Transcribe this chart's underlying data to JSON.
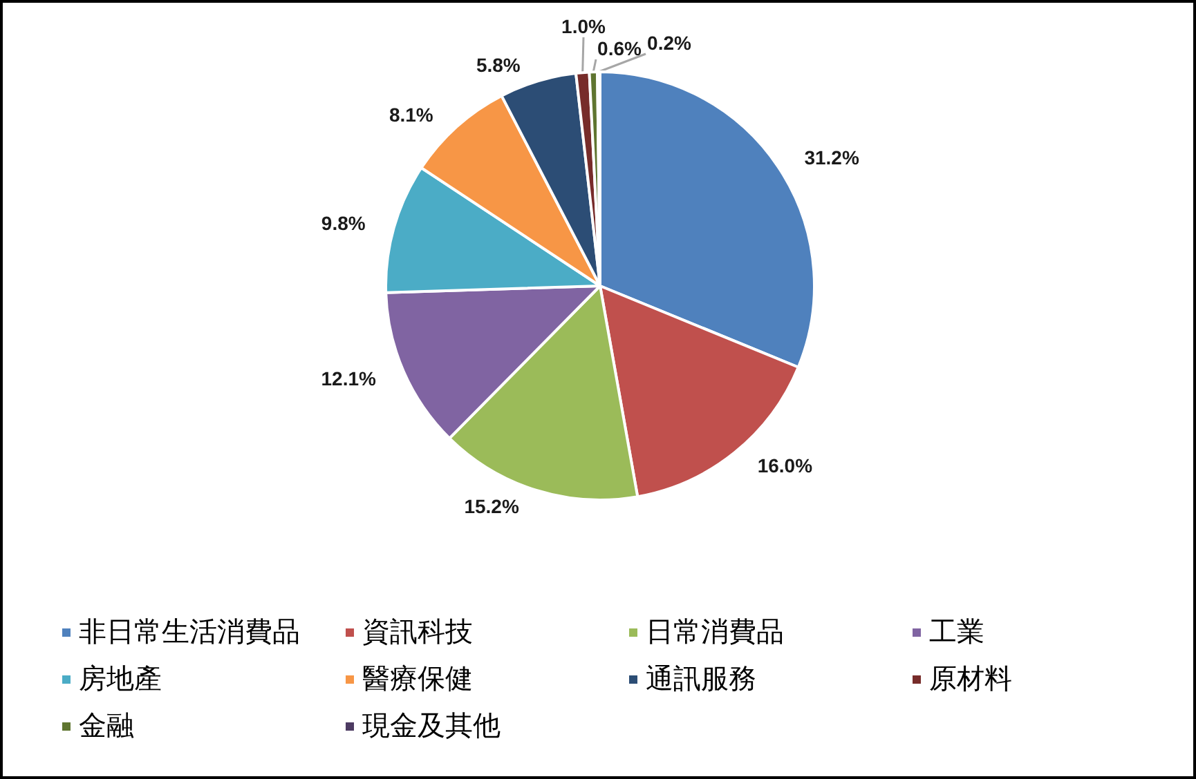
{
  "chart_data": {
    "type": "pie",
    "categories": [
      "非日常生活消費品",
      "資訊科技",
      "日常消費品",
      "工業",
      "房地產",
      "醫療保健",
      "通訊服務",
      "原材料",
      "金融",
      "現金及其他"
    ],
    "values": [
      31.2,
      16.0,
      15.2,
      12.1,
      9.8,
      8.1,
      5.8,
      1.0,
      0.6,
      0.2
    ],
    "colors": [
      "#4f81bd",
      "#c0504d",
      "#9bbb59",
      "#8064a2",
      "#4bacc6",
      "#f79646",
      "#2c4d75",
      "#772c2a",
      "#5f7530",
      "#4d3b62"
    ],
    "value_labels": [
      "31.2%",
      "16.0%",
      "15.2%",
      "12.1%",
      "9.8%",
      "8.1%",
      "5.8%",
      "1.0%",
      "0.6%",
      "0.2%"
    ],
    "legend": "bottom"
  }
}
